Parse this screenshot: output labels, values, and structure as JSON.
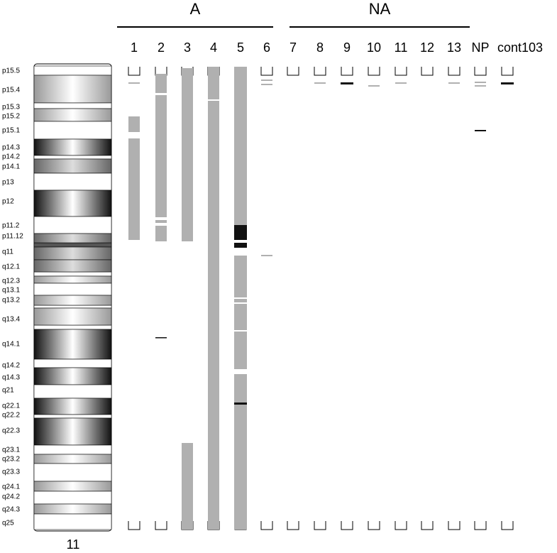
{
  "groups": [
    {
      "label": "A"
    },
    {
      "label": "NA"
    }
  ],
  "columns": [
    "1",
    "2",
    "3",
    "4",
    "5",
    "6",
    "7",
    "8",
    "9",
    "10",
    "11",
    "12",
    "13",
    "NP",
    "cont103"
  ],
  "bands": [
    "p15.5",
    "p15.4",
    "p15.3",
    "p15.2",
    "p15.1",
    "p14.3",
    "p14.2",
    "p14.1",
    "p13",
    "p12",
    "p11.2",
    "p11.12",
    "q11",
    "q12.1",
    "q12.3",
    "q13.1",
    "q13.2",
    "q13.4",
    "q14.1",
    "q14.2",
    "q14.3",
    "q21",
    "q22.1",
    "q22.2",
    "q22.3",
    "q23.1",
    "q23.2",
    "q23.3",
    "q24.1",
    "q24.2",
    "q24.3",
    "q25"
  ],
  "chromosome": "11"
}
